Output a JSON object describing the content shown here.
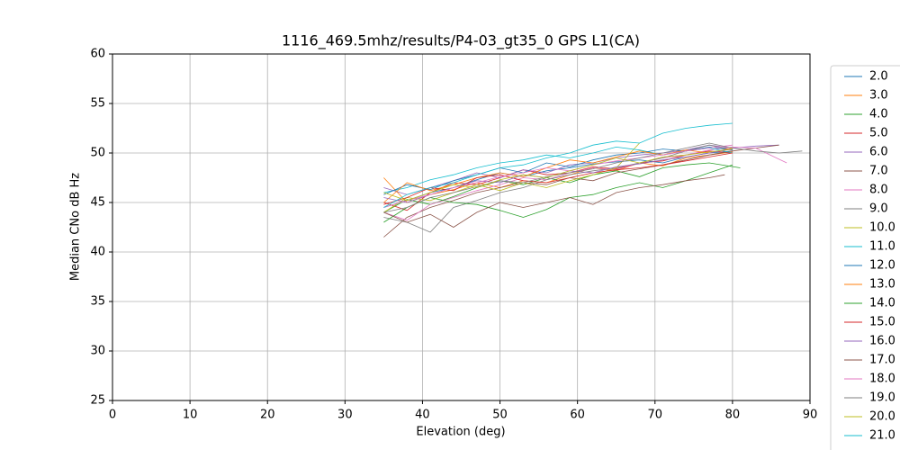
{
  "chart_data": {
    "type": "line",
    "title": "1116_469.5mhz/results/P4-03_gt35_0 GPS L1(CA)",
    "x_label": "Elevation (deg)",
    "y_label": "Median CNo dB Hz",
    "xlim": [
      0,
      90
    ],
    "ylim": [
      25,
      60
    ],
    "xticks": [
      0,
      10,
      20,
      30,
      40,
      50,
      60,
      70,
      80,
      90
    ],
    "yticks": [
      25,
      30,
      35,
      40,
      45,
      50,
      55,
      60
    ],
    "grid": true,
    "legend": "right",
    "series": [
      {
        "name": "2.0",
        "color": "#1f77b4",
        "x": [
          35,
          38,
          41,
          44,
          47,
          50,
          53,
          56,
          59,
          62,
          65,
          68,
          71,
          74,
          77,
          80
        ],
        "values": [
          44.5,
          45.2,
          46.0,
          46.5,
          47.3,
          48.0,
          47.6,
          48.2,
          48.5,
          48.9,
          49.1,
          49.3,
          49.0,
          49.6,
          50.0,
          50.2
        ]
      },
      {
        "name": "3.0",
        "color": "#ff7f0e",
        "x": [
          35,
          38,
          41,
          44,
          47,
          50,
          53,
          56,
          59,
          62,
          65,
          68,
          71,
          74,
          77,
          80
        ],
        "values": [
          47.5,
          45.0,
          45.8,
          46.3,
          47.0,
          46.5,
          47.2,
          47.0,
          47.8,
          48.5,
          48.2,
          49.0,
          48.7,
          49.5,
          49.8,
          50.1
        ]
      },
      {
        "name": "4.0",
        "color": "#2ca02c",
        "x": [
          35,
          38,
          41,
          44,
          47,
          50,
          53,
          56,
          59,
          62,
          65,
          68,
          71,
          74,
          77,
          81
        ],
        "values": [
          44.0,
          45.3,
          44.8,
          45.6,
          46.5,
          47.2,
          46.8,
          47.5,
          47.0,
          47.8,
          48.2,
          47.6,
          48.5,
          48.8,
          49.0,
          48.5
        ]
      },
      {
        "name": "5.0",
        "color": "#d62728",
        "x": [
          35,
          38,
          41,
          44,
          47,
          50,
          53,
          56,
          59,
          62,
          65,
          68,
          71,
          74,
          77,
          80
        ],
        "values": [
          45.0,
          44.2,
          46.0,
          47.0,
          46.8,
          47.5,
          48.3,
          47.8,
          48.0,
          48.6,
          48.4,
          49.0,
          49.2,
          49.8,
          50.2,
          50.0
        ]
      },
      {
        "name": "6.0",
        "color": "#9467bd",
        "x": [
          35,
          38,
          41,
          44,
          47,
          50,
          53,
          56,
          59,
          62,
          65,
          68,
          71,
          74,
          77,
          80,
          83,
          86
        ],
        "values": [
          46.5,
          45.8,
          46.5,
          47.2,
          48.0,
          47.5,
          48.3,
          48.0,
          48.8,
          49.0,
          49.5,
          49.8,
          50.0,
          50.3,
          50.8,
          50.5,
          50.7,
          50.8
        ]
      },
      {
        "name": "7.0",
        "color": "#8c564b",
        "x": [
          35,
          38,
          41,
          44,
          47,
          50,
          53,
          56,
          59,
          62,
          65,
          68,
          71,
          74,
          77,
          80,
          83,
          86
        ],
        "values": [
          41.5,
          43.5,
          44.5,
          45.2,
          46.0,
          46.5,
          47.0,
          46.8,
          47.5,
          47.2,
          48.0,
          48.4,
          48.8,
          49.3,
          49.8,
          50.2,
          50.5,
          50.8
        ]
      },
      {
        "name": "8.0",
        "color": "#e377c2",
        "x": [
          35,
          38,
          41,
          44,
          47,
          50,
          53,
          56,
          59,
          62,
          65,
          68,
          71,
          74,
          77,
          80,
          83,
          87
        ],
        "values": [
          44.0,
          43.2,
          44.8,
          45.5,
          46.2,
          46.8,
          47.5,
          47.3,
          48.0,
          48.5,
          48.3,
          49.0,
          49.5,
          49.8,
          50.3,
          50.6,
          50.5,
          49.0
        ]
      },
      {
        "name": "9.0",
        "color": "#7f7f7f",
        "x": [
          35,
          38,
          41,
          44,
          47,
          50,
          53,
          56,
          59,
          62,
          65,
          68,
          71,
          74,
          77,
          80
        ],
        "values": [
          43.5,
          43.0,
          42.0,
          44.5,
          45.2,
          46.0,
          46.5,
          47.3,
          47.8,
          48.2,
          48.5,
          49.0,
          49.5,
          50.2,
          50.8,
          50.3
        ]
      },
      {
        "name": "10.0",
        "color": "#bcbd22",
        "x": [
          35,
          38,
          41,
          44,
          47,
          50,
          53,
          56,
          59,
          62,
          65,
          68
        ],
        "values": [
          44.0,
          45.5,
          45.2,
          46.0,
          46.8,
          46.2,
          47.0,
          46.5,
          47.2,
          47.8,
          48.5,
          51.0
        ]
      },
      {
        "name": "11.0",
        "color": "#17becf",
        "x": [
          35,
          38,
          41,
          44,
          47,
          50,
          53,
          56,
          59,
          62,
          65,
          68,
          71,
          74,
          77,
          80
        ],
        "values": [
          46.0,
          46.5,
          47.3,
          47.8,
          48.5,
          49.0,
          49.3,
          49.8,
          49.5,
          50.0,
          50.6,
          50.3,
          49.8,
          50.2,
          50.5,
          50.0
        ]
      },
      {
        "name": "12.0",
        "color": "#1f77b4",
        "x": [
          35,
          38,
          41,
          44,
          47,
          50,
          53,
          56,
          59,
          62,
          65,
          68,
          71,
          74,
          77,
          80
        ],
        "values": [
          45.8,
          46.8,
          46.3,
          47.2,
          47.8,
          48.5,
          48.0,
          49.0,
          48.6,
          49.3,
          49.8,
          50.0,
          50.4,
          50.2,
          50.6,
          50.3
        ]
      },
      {
        "name": "13.0",
        "color": "#ff7f0e",
        "x": [
          35,
          38,
          41,
          44,
          47,
          50,
          53,
          56,
          59,
          62,
          65,
          68,
          71,
          74,
          77,
          80
        ],
        "values": [
          45.0,
          47.0,
          46.2,
          46.8,
          47.5,
          48.0,
          47.6,
          48.5,
          49.3,
          49.0,
          49.6,
          50.2,
          49.8,
          50.3,
          50.0,
          50.5
        ]
      },
      {
        "name": "14.0",
        "color": "#2ca02c",
        "x": [
          35,
          38,
          41,
          44,
          47,
          50,
          53,
          56,
          59,
          62,
          65,
          68,
          71,
          74,
          77,
          80
        ],
        "values": [
          43.0,
          44.5,
          45.5,
          45.0,
          44.8,
          44.2,
          43.5,
          44.3,
          45.5,
          45.8,
          46.5,
          47.0,
          46.5,
          47.2,
          48.0,
          48.8
        ]
      },
      {
        "name": "15.0",
        "color": "#d62728",
        "x": [
          35,
          38,
          41,
          44,
          47,
          50,
          53,
          56,
          59,
          62,
          65,
          68,
          71,
          74,
          77,
          80
        ],
        "values": [
          44.8,
          45.5,
          46.5,
          46.2,
          47.5,
          47.8,
          47.2,
          47.0,
          47.5,
          48.0,
          48.3,
          48.5,
          48.8,
          49.2,
          49.6,
          50.0
        ]
      },
      {
        "name": "16.0",
        "color": "#9467bd",
        "x": [
          35,
          38,
          41,
          44,
          47,
          50,
          53,
          56,
          59,
          62,
          65,
          68,
          71,
          74,
          77,
          80
        ],
        "values": [
          45.5,
          45.0,
          45.8,
          46.5,
          47.2,
          47.0,
          47.8,
          47.5,
          48.2,
          48.0,
          48.6,
          48.9,
          49.3,
          49.6,
          50.0,
          50.4
        ]
      },
      {
        "name": "17.0",
        "color": "#8c564b",
        "x": [
          35,
          38,
          41,
          44,
          47,
          50,
          53,
          56,
          59,
          62,
          65,
          68,
          71,
          74,
          77,
          79
        ],
        "values": [
          44.0,
          43.0,
          43.8,
          42.5,
          44.0,
          45.0,
          44.5,
          45.0,
          45.5,
          44.8,
          46.0,
          46.5,
          46.8,
          47.2,
          47.5,
          47.8
        ]
      },
      {
        "name": "18.0",
        "color": "#e377c2",
        "x": [
          35,
          38,
          41,
          44,
          47,
          50,
          53,
          56,
          59,
          62,
          65,
          68,
          71,
          74,
          77,
          80
        ],
        "values": [
          44.5,
          45.2,
          45.8,
          46.5,
          47.0,
          47.6,
          48.0,
          48.5,
          48.2,
          48.8,
          49.2,
          49.5,
          49.8,
          50.2,
          50.5,
          50.8
        ]
      },
      {
        "name": "19.0",
        "color": "#7f7f7f",
        "x": [
          35,
          38,
          41,
          44,
          47,
          50,
          53,
          56,
          59,
          62,
          65,
          68,
          71,
          74,
          77,
          80,
          83,
          86,
          89
        ],
        "values": [
          44.0,
          44.5,
          45.5,
          46.0,
          46.6,
          47.2,
          47.0,
          47.6,
          48.0,
          48.4,
          49.0,
          49.5,
          50.0,
          50.5,
          51.0,
          50.5,
          50.2,
          50.0,
          50.2
        ]
      },
      {
        "name": "20.0",
        "color": "#bcbd22",
        "x": [
          35,
          38,
          41,
          44,
          47,
          50,
          53,
          56,
          59,
          62,
          65,
          68,
          71,
          74,
          77,
          80
        ],
        "values": [
          46.0,
          45.2,
          46.0,
          46.8,
          46.5,
          47.3,
          47.8,
          47.5,
          48.2,
          48.8,
          49.5,
          49.0,
          49.6,
          49.8,
          50.1,
          50.4
        ]
      },
      {
        "name": "21.0",
        "color": "#17becf",
        "x": [
          35,
          38,
          41,
          44,
          47,
          50,
          53,
          56,
          59,
          62,
          65,
          68,
          71,
          74,
          77,
          80
        ],
        "values": [
          44.5,
          45.8,
          46.5,
          47.0,
          47.8,
          48.5,
          48.8,
          49.5,
          50.0,
          50.8,
          51.2,
          51.0,
          52.0,
          52.5,
          52.8,
          53.0
        ]
      }
    ]
  }
}
